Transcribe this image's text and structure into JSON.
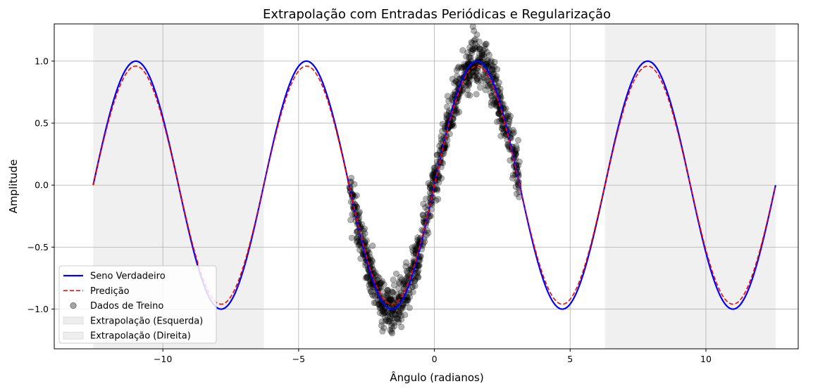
{
  "chart_data": {
    "type": "line",
    "title": "Extrapolação com Entradas Periódicas e Regularização",
    "xlabel": "Ângulo (radianos)",
    "ylabel": "Amplitude",
    "xlim": [
      -14.0,
      13.4
    ],
    "ylim": [
      -1.32,
      1.3
    ],
    "xticks": [
      -10,
      -5,
      0,
      5,
      10
    ],
    "xtick_labels": [
      "−10",
      "−5",
      "0",
      "5",
      "10"
    ],
    "yticks": [
      -1.0,
      -0.5,
      0.0,
      0.5,
      1.0
    ],
    "ytick_labels": [
      "−1.0",
      "−0.5",
      "0.0",
      "0.5",
      "1.0"
    ],
    "grid": true,
    "legend_position": "lower-left",
    "x_domain": [
      -12.566,
      12.566
    ],
    "training_range": [
      -3.1416,
      3.1416
    ],
    "shaded_regions": [
      {
        "name": "Extrapolação (Esquerda)",
        "x": [
          -12.566,
          -6.283
        ],
        "color": "#d9d9d9"
      },
      {
        "name": "Extrapolação (Direita)",
        "x": [
          6.283,
          12.566
        ],
        "color": "#d9d9d9"
      }
    ],
    "series": [
      {
        "name": "Seno Verdadeiro",
        "kind": "line",
        "function": "sin(x)",
        "color": "#0000ff",
        "style": "solid"
      },
      {
        "name": "Predição",
        "kind": "line",
        "function": "0.96·sin(x)",
        "color": "#ff0000",
        "style": "dashed"
      },
      {
        "name": "Dados de Treino",
        "kind": "scatter",
        "function": "sin(x) + noise",
        "noise_std": 0.1,
        "n_points": 1000,
        "color": "#000000"
      }
    ]
  }
}
